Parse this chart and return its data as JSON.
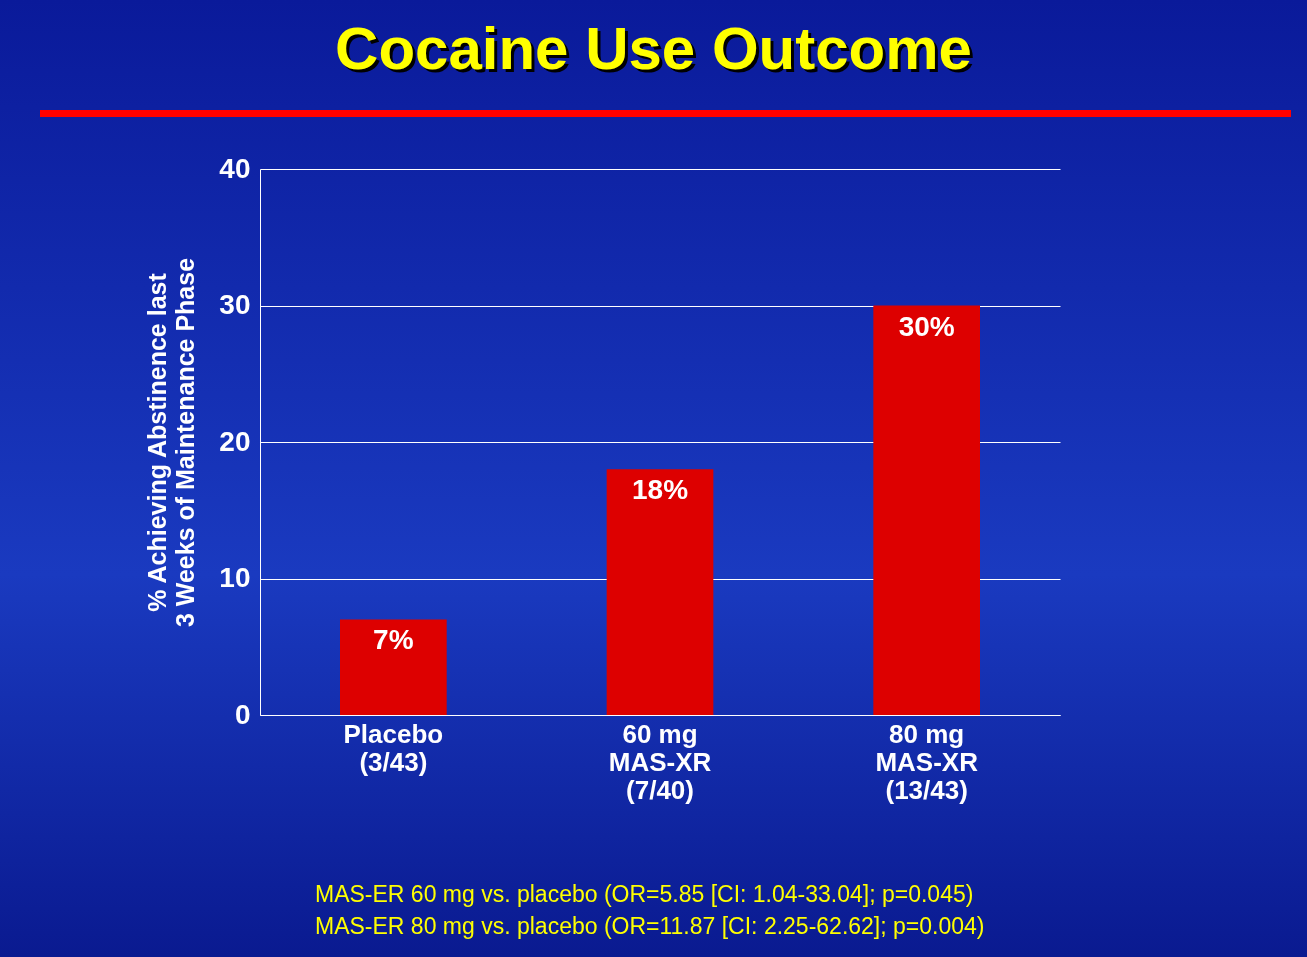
{
  "chart_data": {
    "type": "bar",
    "title": "Cocaine Use Outcome",
    "ylabel": "% Achieving Abstinence last\n3 Weeks of Maintenance Phase",
    "categories": [
      "Placebo\n(3/43)",
      "60 mg\nMAS-XR\n(7/40)",
      "80 mg\nMAS-XR\n(13/43)"
    ],
    "values": [
      7,
      18,
      30
    ],
    "value_labels": [
      "7%",
      "18%",
      "30%"
    ],
    "color": "#dd0000",
    "ylim": [
      0,
      40
    ],
    "yticks": [
      0,
      10,
      20,
      30,
      40
    ],
    "grid": "y",
    "annotations": [
      "MAS-ER 60 mg vs. placebo (OR=5.85 [CI: 1.04-33.04]; p=0.045)",
      "MAS-ER 80 mg vs. placebo (OR=11.87 [CI: 2.25-62.62]; p=0.004)"
    ]
  }
}
